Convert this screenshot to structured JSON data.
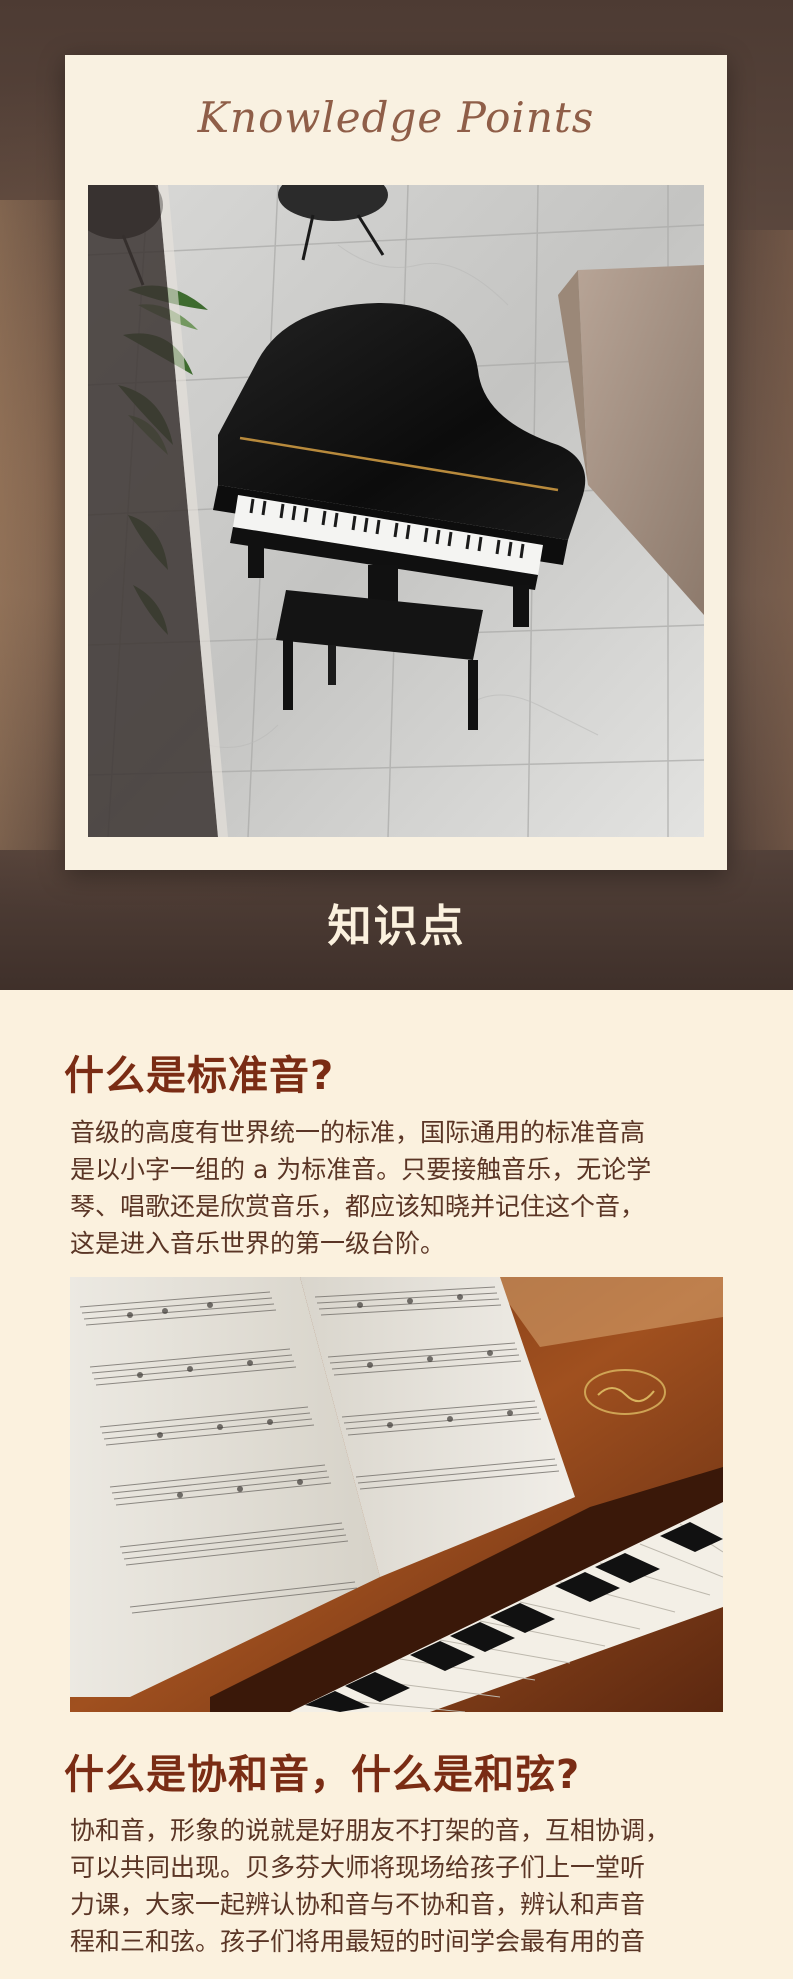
{
  "hero": {
    "script_title": "Knowledge Points",
    "label": "知识点",
    "photo_alt": "grand-piano-top-view"
  },
  "sections": [
    {
      "heading": "什么是标准音?",
      "lines": [
        "音级的高度有世界统一的标准，国际通用的标准音高",
        "是以小字一组的 a 为标准音。只要接触音乐，无论学",
        "琴、唱歌还是欣赏音乐，都应该知晓并记住这个音，",
        "这是进入音乐世界的第一级台阶。"
      ]
    },
    {
      "heading": "什么是协和音，什么是和弦?",
      "lines": [
        "协和音，形象的说就是好朋友不打架的音，互相协调，",
        "可以共同出现。贝多芬大师将现场给孩子们上一堂听",
        "力课，大家一起辨认协和音与不协和音，辨认和声音",
        "程和三和弦。孩子们将用最短的时间学会最有用的音"
      ]
    }
  ],
  "colors": {
    "page_bg": "#fbf1de",
    "heading": "#7a2c14",
    "body_text": "#5a3525",
    "hero_bg": "#5e4a40",
    "card_bg": "#f9f1e1"
  }
}
